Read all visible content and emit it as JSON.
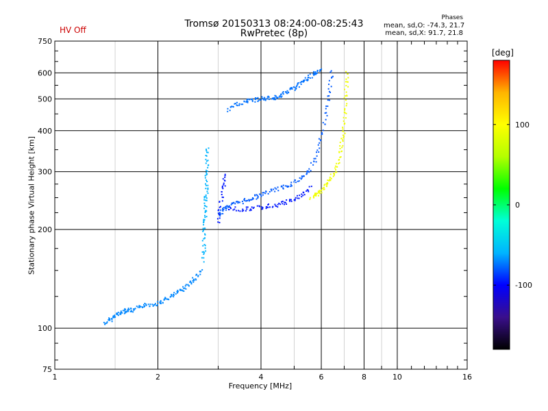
{
  "header": {
    "title": "Tromsø 20150313 08:24:00-08:25:43",
    "subtitle": "RwPretec (8p)",
    "hv_status": "HV Off",
    "phases": {
      "heading": "Phases",
      "o_mode": "mean, sd,O: -74.3, 21.7",
      "x_mode": "mean, sd,X:  91.7, 21.8"
    }
  },
  "colors": {
    "hv_status": "#cc0000",
    "grid": "#000000",
    "colorbar": [
      "#000000",
      "#3a0f8c",
      "#0000ff",
      "#00b4ff",
      "#00ffd8",
      "#00ff00",
      "#b4ff00",
      "#ffff00",
      "#ffb400",
      "#ff0000"
    ]
  },
  "chart_data": {
    "type": "scatter",
    "xlabel": "Frequency [MHz]",
    "ylabel": "Stationary phase Virtual Height [km]",
    "x_scale": "log",
    "y_scale": "log",
    "xlim": [
      1,
      16
    ],
    "ylim": [
      75,
      750
    ],
    "x_ticks": [
      1,
      2,
      4,
      6,
      8,
      10,
      16
    ],
    "y_ticks": [
      75,
      100,
      200,
      300,
      400,
      500,
      600,
      750
    ],
    "grid": true,
    "colorbar": {
      "label": "[deg]",
      "range": [
        -180,
        180
      ],
      "ticks": [
        100,
        0,
        -100
      ]
    },
    "series": [
      {
        "name": "O",
        "phase_mean": -74.3,
        "traces": [
          {
            "phase": -70,
            "points": [
              [
                1.4,
                103
              ],
              [
                1.45,
                106
              ],
              [
                1.5,
                109
              ],
              [
                1.55,
                111
              ],
              [
                1.6,
                113
              ],
              [
                1.65,
                114
              ],
              [
                1.7,
                113
              ],
              [
                1.8,
                117
              ],
              [
                1.9,
                118
              ],
              [
                2.0,
                119
              ],
              [
                2.1,
                122
              ],
              [
                2.2,
                125
              ],
              [
                2.3,
                129
              ],
              [
                2.4,
                133
              ],
              [
                2.5,
                138
              ],
              [
                2.6,
                144
              ],
              [
                2.7,
                150
              ]
            ]
          },
          {
            "phase": -60,
            "points": [
              [
                2.72,
                160
              ],
              [
                2.73,
                180
              ],
              [
                2.74,
                200
              ],
              [
                2.75,
                220
              ],
              [
                2.76,
                240
              ],
              [
                2.77,
                260
              ],
              [
                2.78,
                290
              ],
              [
                2.79,
                320
              ],
              [
                2.8,
                360
              ]
            ]
          },
          {
            "phase": -80,
            "points": [
              [
                3.0,
                220
              ],
              [
                3.1,
                230
              ],
              [
                3.2,
                236
              ],
              [
                3.4,
                240
              ],
              [
                3.6,
                245
              ],
              [
                3.8,
                250
              ],
              [
                4.0,
                255
              ],
              [
                4.3,
                262
              ],
              [
                4.6,
                268
              ],
              [
                4.9,
                275
              ],
              [
                5.2,
                285
              ],
              [
                5.5,
                300
              ],
              [
                5.8,
                330
              ],
              [
                6.0,
                380
              ],
              [
                6.2,
                450
              ],
              [
                6.35,
                530
              ],
              [
                6.45,
                620
              ]
            ]
          },
          {
            "phase": -95,
            "points": [
              [
                3.2,
                232
              ],
              [
                3.5,
                230
              ],
              [
                3.8,
                232
              ],
              [
                4.1,
                234
              ],
              [
                4.4,
                237
              ],
              [
                4.7,
                241
              ],
              [
                5.0,
                247
              ],
              [
                5.3,
                256
              ],
              [
                5.6,
                270
              ]
            ]
          },
          {
            "phase": -75,
            "points": [
              [
                3.2,
                460
              ],
              [
                3.4,
                480
              ],
              [
                3.6,
                490
              ],
              [
                3.8,
                495
              ],
              [
                4.0,
                500
              ],
              [
                4.2,
                502
              ],
              [
                4.4,
                505
              ],
              [
                4.6,
                512
              ],
              [
                4.8,
                525
              ],
              [
                5.0,
                540
              ],
              [
                5.2,
                555
              ],
              [
                5.4,
                570
              ],
              [
                5.6,
                585
              ],
              [
                5.8,
                600
              ],
              [
                6.0,
                612
              ]
            ]
          },
          {
            "phase": -95,
            "points": [
              [
                3.0,
                210
              ],
              [
                3.05,
                240
              ],
              [
                3.1,
                270
              ],
              [
                3.15,
                295
              ]
            ]
          }
        ]
      },
      {
        "name": "X",
        "phase_mean": 91.7,
        "traces": [
          {
            "phase": 92,
            "points": [
              [
                5.6,
                250
              ],
              [
                5.8,
                255
              ],
              [
                6.0,
                262
              ],
              [
                6.2,
                272
              ],
              [
                6.4,
                285
              ],
              [
                6.6,
                305
              ],
              [
                6.8,
                335
              ],
              [
                6.9,
                370
              ],
              [
                7.0,
                410
              ],
              [
                7.05,
                470
              ],
              [
                7.1,
                540
              ],
              [
                7.15,
                620
              ]
            ]
          }
        ]
      }
    ]
  }
}
